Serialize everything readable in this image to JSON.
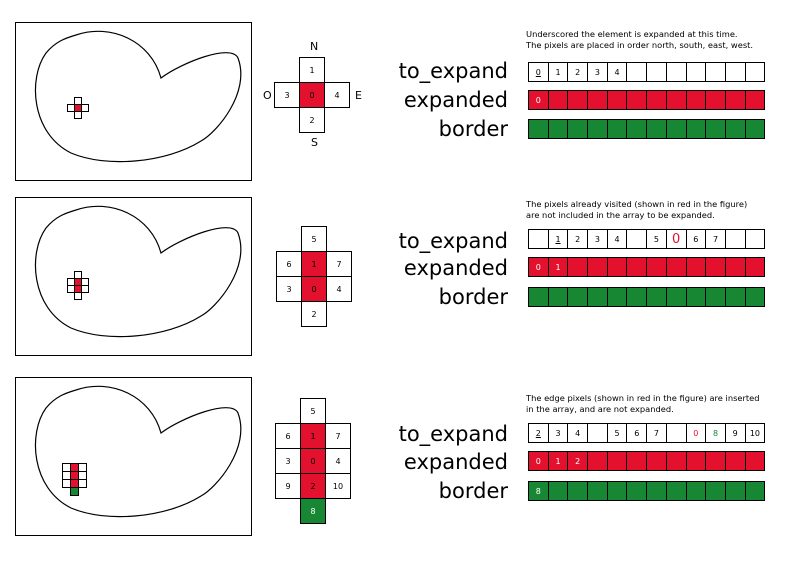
{
  "labels": {
    "to_expand": "to_expand",
    "expanded": "expanded",
    "border": "border"
  },
  "compass": {
    "north": "N",
    "south": "S",
    "east": "E",
    "west": "O"
  },
  "colors": {
    "visited": "#e3112d",
    "edge": "#178733",
    "empty": "#ffffff"
  },
  "panels": [
    {
      "note_lines": [
        "Underscored the element is expanded at this time.",
        "The pixels are placed in order north, south, east, west."
      ],
      "cross": [
        {
          "r": 0,
          "c": 1,
          "t": "1",
          "s": "w"
        },
        {
          "r": 1,
          "c": 0,
          "t": "3",
          "s": "w"
        },
        {
          "r": 1,
          "c": 1,
          "t": "0",
          "s": "r"
        },
        {
          "r": 1,
          "c": 2,
          "t": "4",
          "s": "w"
        },
        {
          "r": 2,
          "c": 1,
          "t": "2",
          "s": "w"
        }
      ],
      "to_expand": [
        {
          "t": "0",
          "u": true
        },
        {
          "t": "1"
        },
        {
          "t": "2"
        },
        {
          "t": "3"
        },
        {
          "t": "4"
        },
        {
          "t": ""
        },
        {
          "t": ""
        },
        {
          "t": ""
        },
        {
          "t": ""
        },
        {
          "t": ""
        },
        {
          "t": ""
        },
        {
          "t": ""
        }
      ],
      "expanded": [
        {
          "t": "0"
        },
        {
          "t": ""
        },
        {
          "t": ""
        },
        {
          "t": ""
        },
        {
          "t": ""
        },
        {
          "t": ""
        },
        {
          "t": ""
        },
        {
          "t": ""
        },
        {
          "t": ""
        },
        {
          "t": ""
        },
        {
          "t": ""
        },
        {
          "t": ""
        }
      ],
      "border": [
        {
          "t": ""
        },
        {
          "t": ""
        },
        {
          "t": ""
        },
        {
          "t": ""
        },
        {
          "t": ""
        },
        {
          "t": ""
        },
        {
          "t": ""
        },
        {
          "t": ""
        },
        {
          "t": ""
        },
        {
          "t": ""
        },
        {
          "t": ""
        },
        {
          "t": ""
        }
      ],
      "pixels": [
        {
          "r": 0,
          "c": 1,
          "s": "w"
        },
        {
          "r": 1,
          "c": 0,
          "s": "w"
        },
        {
          "r": 1,
          "c": 1,
          "s": "r"
        },
        {
          "r": 1,
          "c": 2,
          "s": "w"
        },
        {
          "r": 2,
          "c": 1,
          "s": "w"
        }
      ]
    },
    {
      "note_lines": [
        "The pixels already visited (shown in red in the figure)",
        "are not included in the array to be expanded."
      ],
      "cross": [
        {
          "r": 0,
          "c": 1,
          "t": "5",
          "s": "w"
        },
        {
          "r": 1,
          "c": 0,
          "t": "6",
          "s": "w"
        },
        {
          "r": 1,
          "c": 1,
          "t": "1",
          "s": "r"
        },
        {
          "r": 1,
          "c": 2,
          "t": "7",
          "s": "w"
        },
        {
          "r": 2,
          "c": 0,
          "t": "3",
          "s": "w"
        },
        {
          "r": 2,
          "c": 1,
          "t": "0",
          "s": "r"
        },
        {
          "r": 2,
          "c": 2,
          "t": "4",
          "s": "w"
        },
        {
          "r": 3,
          "c": 1,
          "t": "2",
          "s": "w"
        }
      ],
      "to_expand": [
        {
          "t": ""
        },
        {
          "t": "1",
          "u": true
        },
        {
          "t": "2"
        },
        {
          "t": "3"
        },
        {
          "t": "4"
        },
        {
          "t": ""
        },
        {
          "t": "5"
        },
        {
          "t": "0",
          "red": true,
          "big": true
        },
        {
          "t": "6"
        },
        {
          "t": "7"
        },
        {
          "t": ""
        },
        {
          "t": ""
        }
      ],
      "expanded": [
        {
          "t": "0"
        },
        {
          "t": "1"
        },
        {
          "t": ""
        },
        {
          "t": ""
        },
        {
          "t": ""
        },
        {
          "t": ""
        },
        {
          "t": ""
        },
        {
          "t": ""
        },
        {
          "t": ""
        },
        {
          "t": ""
        },
        {
          "t": ""
        },
        {
          "t": ""
        }
      ],
      "border": [
        {
          "t": ""
        },
        {
          "t": ""
        },
        {
          "t": ""
        },
        {
          "t": ""
        },
        {
          "t": ""
        },
        {
          "t": ""
        },
        {
          "t": ""
        },
        {
          "t": ""
        },
        {
          "t": ""
        },
        {
          "t": ""
        },
        {
          "t": ""
        },
        {
          "t": ""
        }
      ],
      "pixels": [
        {
          "r": 0,
          "c": 1,
          "s": "w"
        },
        {
          "r": 1,
          "c": 0,
          "s": "w"
        },
        {
          "r": 1,
          "c": 1,
          "s": "r"
        },
        {
          "r": 1,
          "c": 2,
          "s": "w"
        },
        {
          "r": 2,
          "c": 0,
          "s": "w"
        },
        {
          "r": 2,
          "c": 1,
          "s": "r"
        },
        {
          "r": 2,
          "c": 2,
          "s": "w"
        },
        {
          "r": 3,
          "c": 1,
          "s": "w"
        }
      ]
    },
    {
      "note_lines": [
        "The edge pixels (shown in red in the figure) are inserted",
        "in the array, and are not expanded."
      ],
      "cross": [
        {
          "r": 0,
          "c": 1,
          "t": "5",
          "s": "w"
        },
        {
          "r": 1,
          "c": 0,
          "t": "6",
          "s": "w"
        },
        {
          "r": 1,
          "c": 1,
          "t": "1",
          "s": "r"
        },
        {
          "r": 1,
          "c": 2,
          "t": "7",
          "s": "w"
        },
        {
          "r": 2,
          "c": 0,
          "t": "3",
          "s": "w"
        },
        {
          "r": 2,
          "c": 1,
          "t": "0",
          "s": "r"
        },
        {
          "r": 2,
          "c": 2,
          "t": "4",
          "s": "w"
        },
        {
          "r": 3,
          "c": 0,
          "t": "9",
          "s": "w"
        },
        {
          "r": 3,
          "c": 1,
          "t": "2",
          "s": "r"
        },
        {
          "r": 3,
          "c": 2,
          "t": "10",
          "s": "w"
        },
        {
          "r": 4,
          "c": 1,
          "t": "8",
          "s": "g"
        }
      ],
      "to_expand": [
        {
          "t": "2",
          "u": true
        },
        {
          "t": "3"
        },
        {
          "t": "4"
        },
        {
          "t": ""
        },
        {
          "t": "5"
        },
        {
          "t": "6"
        },
        {
          "t": "7"
        },
        {
          "t": ""
        },
        {
          "t": "0",
          "red": true
        },
        {
          "t": "8",
          "green": true
        },
        {
          "t": "9"
        },
        {
          "t": "10"
        }
      ],
      "expanded": [
        {
          "t": "0"
        },
        {
          "t": "1"
        },
        {
          "t": "2"
        },
        {
          "t": ""
        },
        {
          "t": ""
        },
        {
          "t": ""
        },
        {
          "t": ""
        },
        {
          "t": ""
        },
        {
          "t": ""
        },
        {
          "t": ""
        },
        {
          "t": ""
        },
        {
          "t": ""
        }
      ],
      "border": [
        {
          "t": "8"
        },
        {
          "t": ""
        },
        {
          "t": ""
        },
        {
          "t": ""
        },
        {
          "t": ""
        },
        {
          "t": ""
        },
        {
          "t": ""
        },
        {
          "t": ""
        },
        {
          "t": ""
        },
        {
          "t": ""
        },
        {
          "t": ""
        },
        {
          "t": ""
        }
      ],
      "pixels": [
        {
          "r": 0,
          "c": 0,
          "s": "w"
        },
        {
          "r": 0,
          "c": 1,
          "s": "r"
        },
        {
          "r": 0,
          "c": 2,
          "s": "w"
        },
        {
          "r": 1,
          "c": 0,
          "s": "w"
        },
        {
          "r": 1,
          "c": 1,
          "s": "r"
        },
        {
          "r": 1,
          "c": 2,
          "s": "w"
        },
        {
          "r": 2,
          "c": 0,
          "s": "w"
        },
        {
          "r": 2,
          "c": 1,
          "s": "r"
        },
        {
          "r": 2,
          "c": 2,
          "s": "w"
        },
        {
          "r": 3,
          "c": 1,
          "s": "g"
        }
      ]
    }
  ]
}
